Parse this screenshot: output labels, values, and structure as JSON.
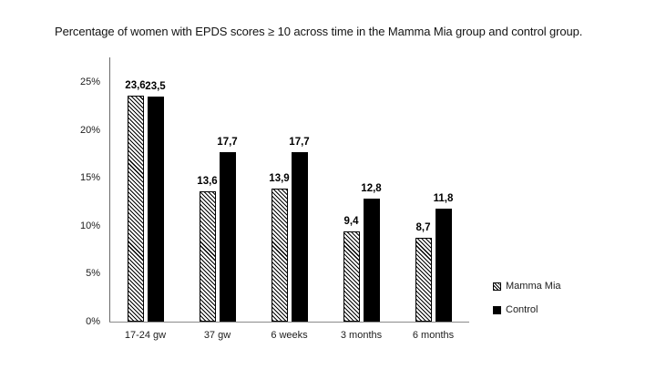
{
  "title": "Percentage of women with EPDS scores ≥ 10 across time in the Mamma Mia group and control group.",
  "colors": {
    "control_fill": "#000000",
    "mamma_mia_hatch_line": "#000000",
    "bar_background": "#ffffff",
    "axis_line": "#6a6a6a",
    "text": "#111111"
  },
  "chart_data": {
    "type": "bar",
    "title": "Percentage of women with EPDS scores ≥ 10 across time in the Mamma Mia group and control group.",
    "categories": [
      "17-24 gw",
      "37 gw",
      "6 weeks",
      "3 months",
      "6 months"
    ],
    "series": [
      {
        "name": "Mamma Mia",
        "fill": "hatch",
        "values": [
          23.6,
          13.6,
          13.9,
          9.4,
          8.7
        ],
        "value_labels": [
          "23,6",
          "13,6",
          "13,9",
          "9,4",
          "8,7"
        ]
      },
      {
        "name": "Control",
        "fill": "solid",
        "values": [
          23.5,
          17.7,
          17.7,
          12.8,
          11.8
        ],
        "value_labels": [
          "23,5",
          "17,7",
          "17,7",
          "12,8",
          "11,8"
        ]
      }
    ],
    "y_axis": {
      "tick_values": [
        0,
        5,
        10,
        15,
        20,
        25
      ],
      "tick_labels": [
        "0%",
        "5%",
        "10%",
        "15%",
        "20%",
        "25%"
      ]
    },
    "ylim": [
      0,
      25
    ],
    "xlabel": "",
    "ylabel": "",
    "grid": false,
    "legend_position": "right-bottom",
    "data_labels": true
  }
}
